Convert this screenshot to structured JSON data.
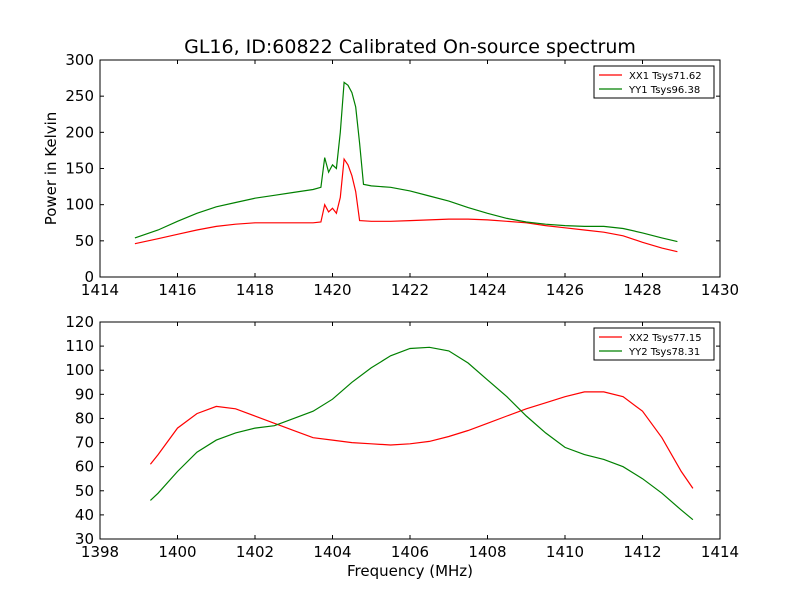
{
  "figure": {
    "title": "GL16, ID:60822 Calibrated On-source spectrum"
  },
  "chart_data": [
    {
      "type": "line",
      "title": "GL16, ID:60822 Calibrated On-source spectrum",
      "xlabel": "",
      "ylabel": "Power in Kelvin",
      "xlim": [
        1414,
        1430
      ],
      "ylim": [
        0,
        300
      ],
      "xticks": [
        1414,
        1416,
        1418,
        1420,
        1422,
        1424,
        1426,
        1428,
        1430
      ],
      "yticks": [
        0,
        50,
        100,
        150,
        200,
        250,
        300
      ],
      "grid": false,
      "legend_position": "top-right",
      "series": [
        {
          "name": "XX1 Tsys71.62",
          "color": "#ff0000",
          "points": [
            [
              1414.9,
              46
            ],
            [
              1415.5,
              53
            ],
            [
              1416.0,
              59
            ],
            [
              1416.5,
              65
            ],
            [
              1417.0,
              70
            ],
            [
              1417.5,
              73
            ],
            [
              1418.0,
              75
            ],
            [
              1418.5,
              75
            ],
            [
              1419.0,
              75
            ],
            [
              1419.5,
              75
            ],
            [
              1419.7,
              76
            ],
            [
              1419.8,
              100
            ],
            [
              1419.9,
              90
            ],
            [
              1420.0,
              95
            ],
            [
              1420.1,
              88
            ],
            [
              1420.2,
              110
            ],
            [
              1420.3,
              163
            ],
            [
              1420.4,
              155
            ],
            [
              1420.5,
              140
            ],
            [
              1420.6,
              118
            ],
            [
              1420.7,
              78
            ],
            [
              1421.0,
              77
            ],
            [
              1421.5,
              77
            ],
            [
              1422.0,
              78
            ],
            [
              1422.5,
              79
            ],
            [
              1423.0,
              80
            ],
            [
              1423.5,
              80
            ],
            [
              1424.0,
              79
            ],
            [
              1424.5,
              77
            ],
            [
              1425.0,
              75
            ],
            [
              1425.5,
              71
            ],
            [
              1426.0,
              68
            ],
            [
              1426.5,
              65
            ],
            [
              1427.0,
              62
            ],
            [
              1427.5,
              57
            ],
            [
              1428.0,
              48
            ],
            [
              1428.5,
              40
            ],
            [
              1428.9,
              35
            ]
          ]
        },
        {
          "name": "YY1 Tsys96.38",
          "color": "#008000",
          "points": [
            [
              1414.9,
              54
            ],
            [
              1415.5,
              65
            ],
            [
              1416.0,
              77
            ],
            [
              1416.5,
              88
            ],
            [
              1417.0,
              97
            ],
            [
              1417.5,
              103
            ],
            [
              1418.0,
              109
            ],
            [
              1418.5,
              113
            ],
            [
              1419.0,
              117
            ],
            [
              1419.5,
              121
            ],
            [
              1419.7,
              124
            ],
            [
              1419.8,
              165
            ],
            [
              1419.9,
              145
            ],
            [
              1420.0,
              155
            ],
            [
              1420.1,
              150
            ],
            [
              1420.2,
              200
            ],
            [
              1420.3,
              269
            ],
            [
              1420.4,
              265
            ],
            [
              1420.5,
              255
            ],
            [
              1420.6,
              235
            ],
            [
              1420.7,
              185
            ],
            [
              1420.8,
              128
            ],
            [
              1421.0,
              126
            ],
            [
              1421.5,
              124
            ],
            [
              1422.0,
              119
            ],
            [
              1422.5,
              112
            ],
            [
              1423.0,
              105
            ],
            [
              1423.5,
              96
            ],
            [
              1424.0,
              88
            ],
            [
              1424.5,
              81
            ],
            [
              1425.0,
              76
            ],
            [
              1425.5,
              73
            ],
            [
              1426.0,
              71
            ],
            [
              1426.5,
              70
            ],
            [
              1427.0,
              70
            ],
            [
              1427.5,
              67
            ],
            [
              1428.0,
              61
            ],
            [
              1428.5,
              54
            ],
            [
              1428.9,
              49
            ]
          ]
        }
      ]
    },
    {
      "type": "line",
      "title": "",
      "xlabel": "Frequency (MHz)",
      "ylabel": "",
      "xlim": [
        1398,
        1414
      ],
      "ylim": [
        30,
        120
      ],
      "xticks": [
        1398,
        1400,
        1402,
        1404,
        1406,
        1408,
        1410,
        1412,
        1414
      ],
      "yticks": [
        30,
        40,
        50,
        60,
        70,
        80,
        90,
        100,
        110,
        120
      ],
      "grid": false,
      "legend_position": "top-right",
      "series": [
        {
          "name": "XX2 Tsys77.15",
          "color": "#ff0000",
          "points": [
            [
              1399.3,
              61
            ],
            [
              1399.5,
              65
            ],
            [
              1400.0,
              76
            ],
            [
              1400.5,
              82
            ],
            [
              1401.0,
              85
            ],
            [
              1401.5,
              84
            ],
            [
              1402.0,
              81
            ],
            [
              1402.5,
              78
            ],
            [
              1403.0,
              75
            ],
            [
              1403.5,
              72
            ],
            [
              1404.0,
              71
            ],
            [
              1404.5,
              70
            ],
            [
              1405.0,
              69.5
            ],
            [
              1405.5,
              69
            ],
            [
              1406.0,
              69.5
            ],
            [
              1406.5,
              70.5
            ],
            [
              1407.0,
              72.5
            ],
            [
              1407.5,
              75
            ],
            [
              1408.0,
              78
            ],
            [
              1408.5,
              81
            ],
            [
              1409.0,
              84
            ],
            [
              1409.5,
              86.5
            ],
            [
              1410.0,
              89
            ],
            [
              1410.5,
              91
            ],
            [
              1411.0,
              91
            ],
            [
              1411.5,
              89
            ],
            [
              1412.0,
              83
            ],
            [
              1412.5,
              72
            ],
            [
              1413.0,
              58
            ],
            [
              1413.3,
              51
            ]
          ]
        },
        {
          "name": "YY2 Tsys78.31",
          "color": "#008000",
          "points": [
            [
              1399.3,
              46
            ],
            [
              1399.5,
              49
            ],
            [
              1400.0,
              58
            ],
            [
              1400.5,
              66
            ],
            [
              1401.0,
              71
            ],
            [
              1401.5,
              74
            ],
            [
              1402.0,
              76
            ],
            [
              1402.5,
              77
            ],
            [
              1403.0,
              80
            ],
            [
              1403.5,
              83
            ],
            [
              1404.0,
              88
            ],
            [
              1404.5,
              95
            ],
            [
              1405.0,
              101
            ],
            [
              1405.5,
              106
            ],
            [
              1406.0,
              109
            ],
            [
              1406.5,
              109.5
            ],
            [
              1407.0,
              108
            ],
            [
              1407.5,
              103
            ],
            [
              1408.0,
              96
            ],
            [
              1408.5,
              89
            ],
            [
              1409.0,
              81
            ],
            [
              1409.5,
              74
            ],
            [
              1410.0,
              68
            ],
            [
              1410.5,
              65
            ],
            [
              1411.0,
              63
            ],
            [
              1411.5,
              60
            ],
            [
              1412.0,
              55
            ],
            [
              1412.5,
              49
            ],
            [
              1413.0,
              42
            ],
            [
              1413.3,
              38
            ]
          ]
        }
      ]
    }
  ]
}
